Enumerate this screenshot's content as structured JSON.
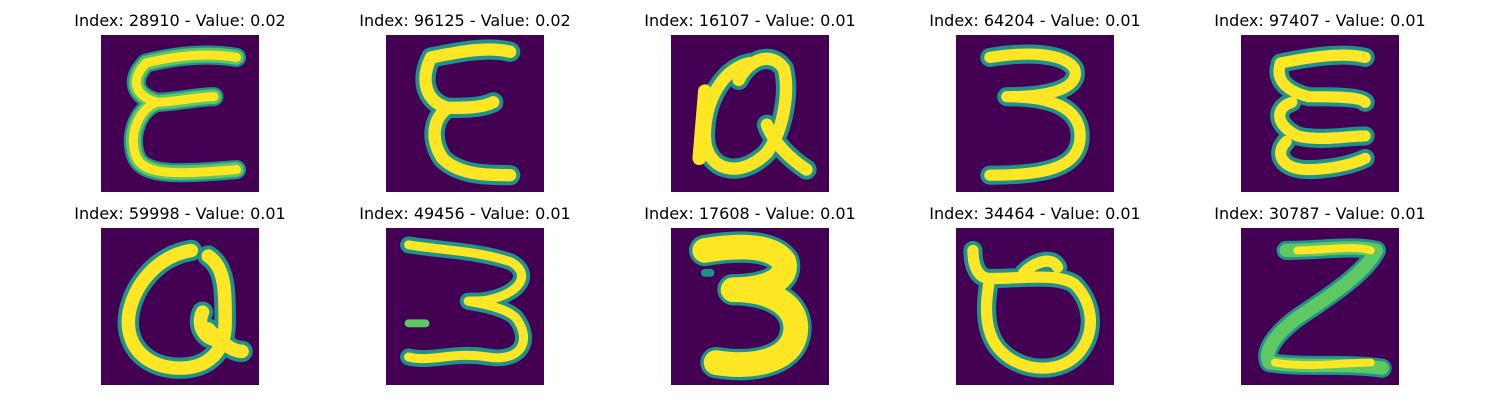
{
  "colors": {
    "background": "#440154",
    "stroke_core": "#fde725",
    "stroke_mid": "#5ec962",
    "stroke_edge": "#21918c"
  },
  "panels": [
    {
      "title": "Index: 28910 - Value: 0.02",
      "glyph": "epsilon"
    },
    {
      "title": "Index: 96125 - Value: 0.02",
      "glyph": "epsilon"
    },
    {
      "title": "Index: 16107 - Value: 0.01",
      "glyph": "alpha-loop"
    },
    {
      "title": "Index: 64204 - Value: 0.01",
      "glyph": "three"
    },
    {
      "title": "Index: 97407 - Value: 0.01",
      "glyph": "sigma-wave"
    },
    {
      "title": "Index: 59998 - Value: 0.01",
      "glyph": "alpha-loop"
    },
    {
      "title": "Index: 49456 - Value: 0.01",
      "glyph": "three"
    },
    {
      "title": "Index: 17608 - Value: 0.01",
      "glyph": "three"
    },
    {
      "title": "Index: 34464 - Value: 0.01",
      "glyph": "u-hook"
    },
    {
      "title": "Index: 30787 - Value: 0.01",
      "glyph": "z"
    }
  ]
}
